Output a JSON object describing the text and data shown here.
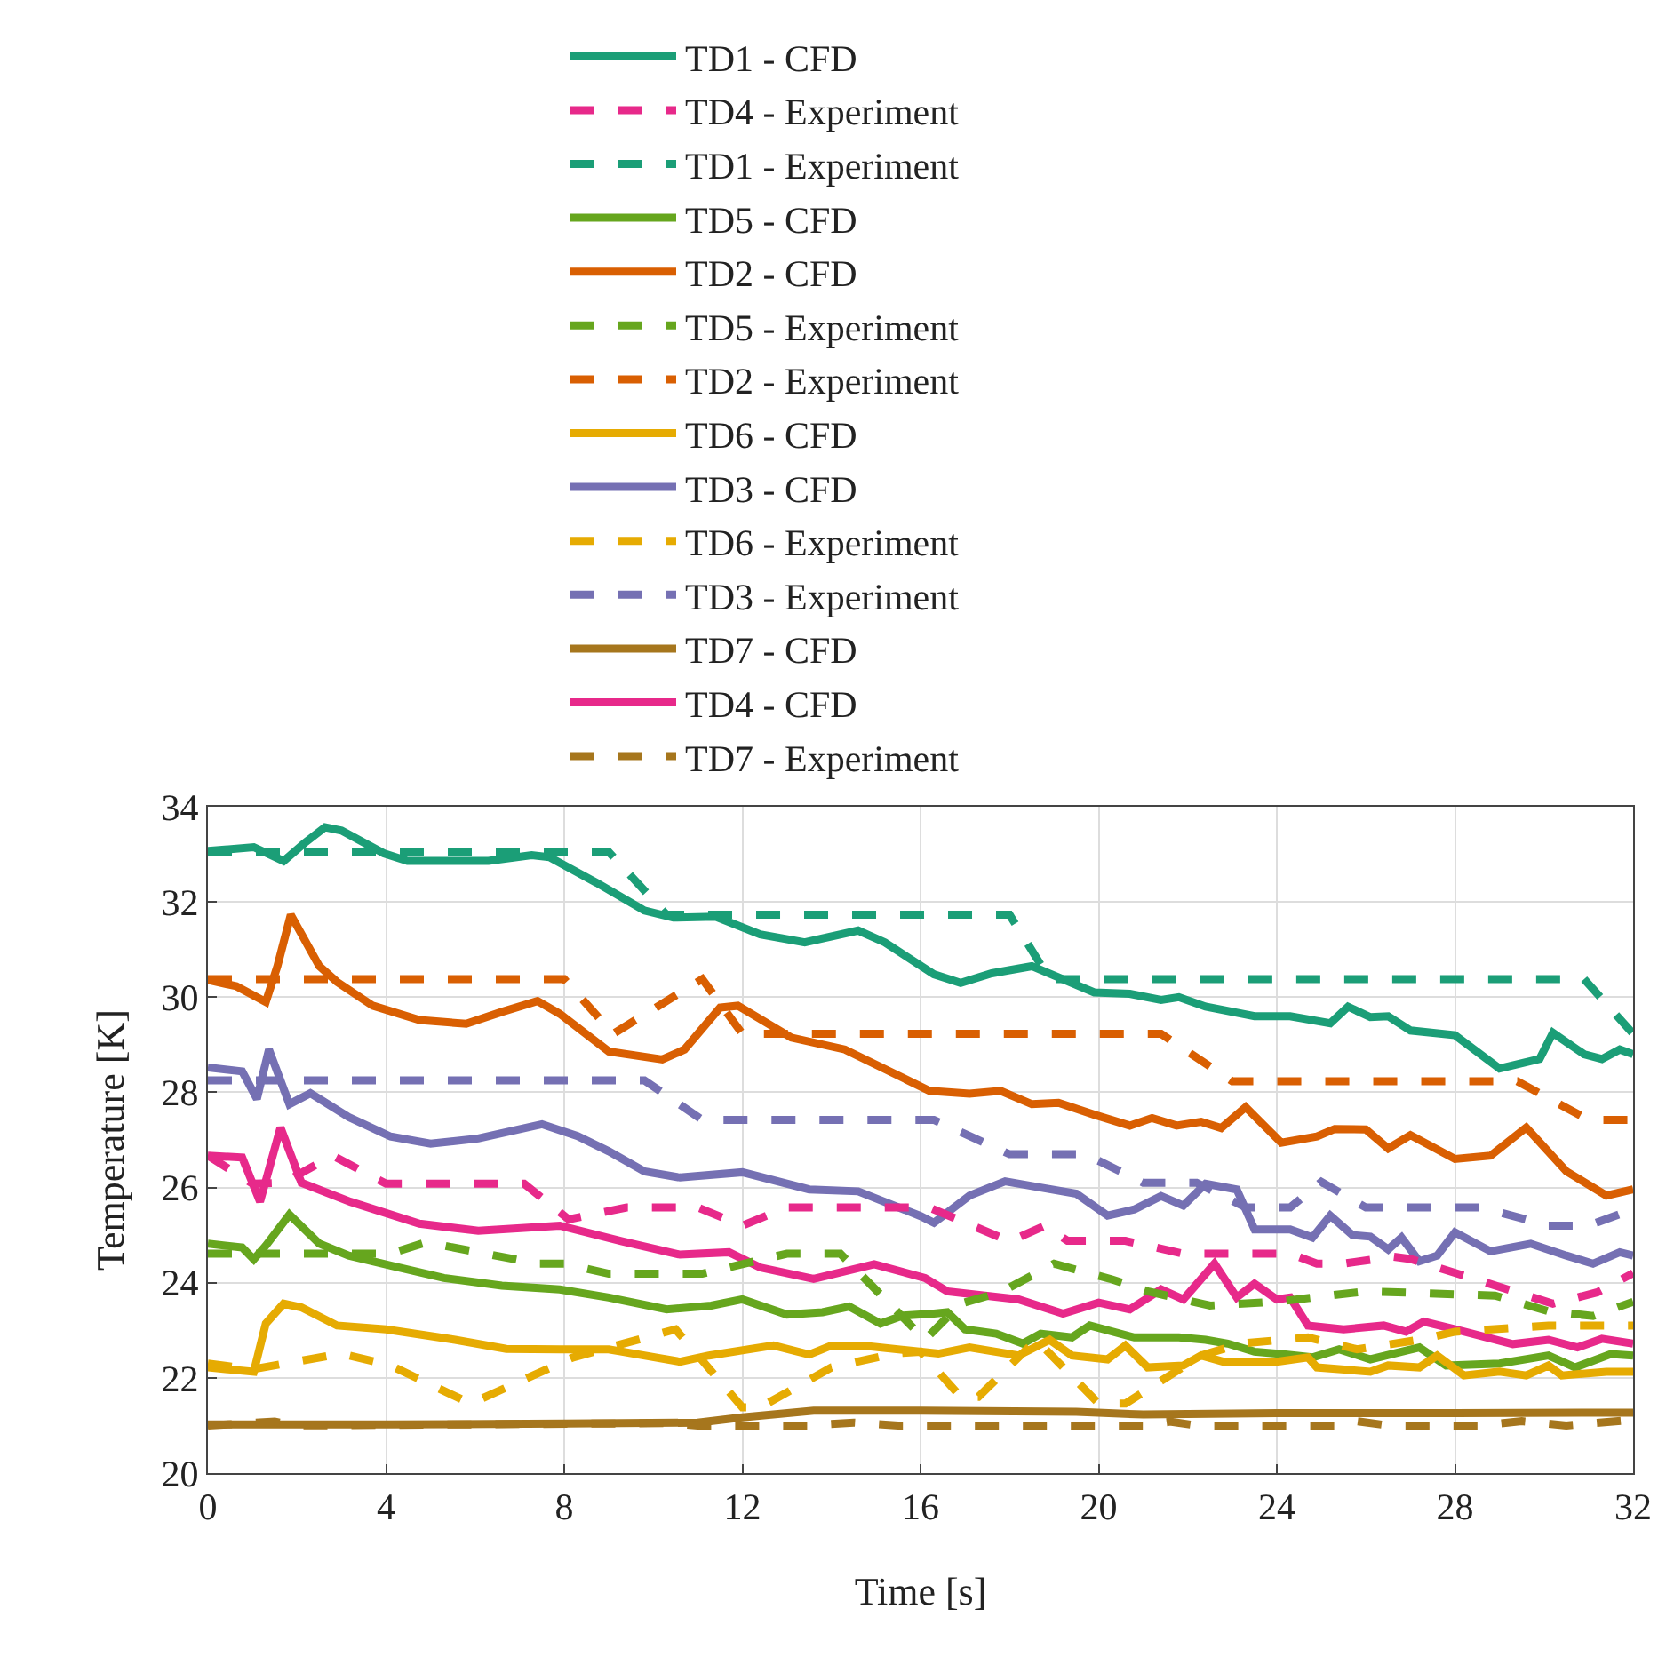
{
  "chart_data": {
    "type": "line",
    "xlabel": "Time [s]",
    "ylabel": "Temperature [K]",
    "xlim": [
      0,
      32
    ],
    "xticks": [
      0,
      4,
      8,
      12,
      16,
      20,
      24,
      28,
      32
    ],
    "ylim": [
      20,
      34
    ],
    "yticks": [
      20,
      22,
      24,
      26,
      28,
      30,
      32,
      34
    ],
    "grid": true,
    "legend": "top",
    "marker": "none",
    "series": [
      {
        "name": "TD1 - CFD",
        "color": "#1b9e77",
        "line_style": "solid",
        "x": [
          0,
          1.03,
          1.7,
          2.16,
          2.63,
          3.0,
          3.95,
          4.48,
          5.7,
          6.3,
          7.27,
          7.67,
          8.73,
          9.8,
          10.45,
          11.4,
          12.4,
          13.4,
          14.6,
          15.2,
          16.3,
          16.9,
          17.6,
          18.5,
          19.9,
          20.7,
          21.4,
          21.8,
          22.4,
          23.5,
          24.3,
          25.2,
          25.6,
          26.1,
          26.5,
          27.0,
          28.0,
          29.0,
          29.9,
          30.2,
          30.9,
          31.3,
          31.7,
          32
        ],
        "values": [
          33.07,
          33.15,
          32.86,
          33.23,
          33.57,
          33.5,
          33.02,
          32.86,
          32.86,
          32.86,
          32.98,
          32.94,
          32.4,
          31.82,
          31.67,
          31.69,
          31.32,
          31.15,
          31.4,
          31.15,
          30.48,
          30.3,
          30.5,
          30.65,
          30.1,
          30.07,
          29.94,
          30.0,
          29.8,
          29.6,
          29.6,
          29.45,
          29.8,
          29.58,
          29.6,
          29.3,
          29.2,
          28.5,
          28.7,
          29.25,
          28.8,
          28.7,
          28.9,
          28.8
        ]
      },
      {
        "name": "TD1 - Experiment",
        "color": "#1b9e77",
        "line_style": "dashed",
        "x": [
          0,
          9.0,
          10.3,
          18.0,
          18.9,
          30.9,
          32
        ],
        "values": [
          33.05,
          33.05,
          31.73,
          31.73,
          30.38,
          30.38,
          29.23
        ]
      },
      {
        "name": "TD2 - CFD",
        "color": "#d95f02",
        "line_style": "solid",
        "x": [
          0,
          0.64,
          1.3,
          1.56,
          1.86,
          2.5,
          2.9,
          3.7,
          4.75,
          5.8,
          6.6,
          7.4,
          7.9,
          9.0,
          10.2,
          10.7,
          11.5,
          11.9,
          13.1,
          14.3,
          16.2,
          17.1,
          17.8,
          18.5,
          19.1,
          19.9,
          20.7,
          21.2,
          21.75,
          22.3,
          22.75,
          23.3,
          24.1,
          24.9,
          25.3,
          26.0,
          26.5,
          27.0,
          28.0,
          28.8,
          29.6,
          30.5,
          31.4,
          32
        ],
        "values": [
          30.36,
          30.23,
          29.9,
          30.65,
          31.73,
          30.65,
          30.32,
          29.82,
          29.52,
          29.44,
          29.69,
          29.92,
          29.65,
          28.86,
          28.69,
          28.9,
          29.78,
          29.82,
          29.15,
          28.9,
          28.03,
          27.97,
          28.03,
          27.75,
          27.78,
          27.53,
          27.3,
          27.46,
          27.3,
          27.38,
          27.25,
          27.69,
          26.94,
          27.07,
          27.23,
          27.22,
          26.82,
          27.1,
          26.6,
          26.67,
          27.26,
          26.34,
          25.83,
          25.96
        ]
      },
      {
        "name": "TD2 - Experiment",
        "color": "#d95f02",
        "line_style": "dashed",
        "x": [
          0,
          8.0,
          9.1,
          11.1,
          12.0,
          21.4,
          23.0,
          29.4,
          31.0,
          32
        ],
        "values": [
          30.38,
          30.38,
          29.23,
          30.38,
          29.23,
          29.23,
          28.23,
          28.23,
          27.42,
          27.42
        ]
      },
      {
        "name": "TD3 - CFD",
        "color": "#7570b3",
        "line_style": "solid",
        "x": [
          0,
          0.77,
          1.1,
          1.37,
          1.83,
          2.3,
          3.16,
          4.1,
          5.0,
          6.07,
          7.5,
          8.3,
          9.0,
          9.8,
          10.6,
          12.0,
          13.5,
          14.6,
          16.0,
          16.3,
          17.1,
          17.9,
          18.7,
          19.5,
          20.2,
          20.8,
          21.4,
          21.9,
          22.4,
          23.1,
          23.5,
          24.3,
          24.8,
          25.2,
          25.7,
          26.1,
          26.5,
          26.8,
          27.2,
          27.6,
          28.0,
          28.8,
          29.7,
          30.5,
          31.1,
          31.7,
          32
        ],
        "values": [
          28.52,
          28.44,
          27.86,
          28.9,
          27.75,
          27.98,
          27.48,
          27.07,
          26.92,
          27.03,
          27.33,
          27.08,
          26.76,
          26.34,
          26.21,
          26.32,
          25.96,
          25.92,
          25.4,
          25.26,
          25.83,
          26.13,
          26.0,
          25.87,
          25.41,
          25.54,
          25.82,
          25.62,
          26.08,
          25.96,
          25.12,
          25.12,
          24.95,
          25.41,
          25.0,
          24.97,
          24.7,
          24.95,
          24.45,
          24.57,
          25.06,
          24.66,
          24.82,
          24.57,
          24.4,
          24.64,
          24.57
        ]
      },
      {
        "name": "TD3 - Experiment",
        "color": "#7570b3",
        "line_style": "dashed",
        "x": [
          0,
          9.8,
          11.1,
          16.3,
          18.0,
          19.7,
          21.0,
          22.2,
          23.3,
          24.3,
          25.0,
          26.0,
          28.6,
          30.1,
          31.0,
          32
        ],
        "values": [
          28.25,
          28.25,
          27.42,
          27.42,
          26.7,
          26.7,
          26.1,
          26.1,
          25.58,
          25.58,
          26.12,
          25.58,
          25.58,
          25.2,
          25.2,
          25.54
        ]
      },
      {
        "name": "TD4 - CFD",
        "color": "#e7298a",
        "line_style": "solid",
        "x": [
          0,
          0.77,
          1.17,
          1.63,
          2.1,
          3.2,
          4.75,
          6.07,
          7.9,
          9.3,
          10.6,
          11.7,
          12.4,
          13.6,
          14.96,
          16.1,
          16.6,
          18.2,
          19.2,
          20.0,
          20.7,
          21.4,
          21.9,
          22.6,
          23.1,
          23.5,
          24.0,
          24.3,
          24.7,
          25.5,
          26.4,
          26.9,
          27.3,
          28.0,
          29.3,
          30.1,
          30.75,
          31.3,
          32
        ],
        "values": [
          26.67,
          26.63,
          25.7,
          27.26,
          26.1,
          25.7,
          25.24,
          25.09,
          25.2,
          24.87,
          24.59,
          24.64,
          24.32,
          24.08,
          24.39,
          24.1,
          23.82,
          23.65,
          23.35,
          23.58,
          23.44,
          23.86,
          23.65,
          24.4,
          23.69,
          23.98,
          23.65,
          23.69,
          23.1,
          23.02,
          23.1,
          22.97,
          23.18,
          23.02,
          22.71,
          22.8,
          22.64,
          22.82,
          22.72
        ]
      },
      {
        "name": "TD4 - Experiment",
        "color": "#e7298a",
        "line_style": "dashed",
        "x": [
          0,
          1.0,
          1.7,
          2.8,
          4.0,
          7.1,
          8.1,
          9.4,
          11.0,
          12.0,
          13.0,
          16.2,
          18.0,
          18.8,
          19.3,
          20.6,
          21.9,
          24.3,
          24.9,
          25.5,
          26.6,
          27.0,
          30.2,
          31.2,
          32
        ],
        "values": [
          26.67,
          26.08,
          26.1,
          26.67,
          26.08,
          26.08,
          25.33,
          25.58,
          25.58,
          25.2,
          25.58,
          25.58,
          24.87,
          25.2,
          24.88,
          24.88,
          24.61,
          24.61,
          24.4,
          24.4,
          24.55,
          24.5,
          23.56,
          23.8,
          24.2
        ]
      },
      {
        "name": "TD5 - CFD",
        "color": "#66a61e",
        "line_style": "solid",
        "x": [
          0,
          0.77,
          1.03,
          1.3,
          1.83,
          2.5,
          3.16,
          4.1,
          5.3,
          6.6,
          7.9,
          9.0,
          10.3,
          11.3,
          12.0,
          13.0,
          13.8,
          14.4,
          15.1,
          15.6,
          16.3,
          16.6,
          17.0,
          17.7,
          18.3,
          18.7,
          19.4,
          19.8,
          20.8,
          21.8,
          22.4,
          22.9,
          23.5,
          24.1,
          24.8,
          25.4,
          26.1,
          27.2,
          27.8,
          29.0,
          30.1,
          30.7,
          31.5,
          32
        ],
        "values": [
          24.82,
          24.74,
          24.49,
          24.78,
          25.43,
          24.82,
          24.57,
          24.36,
          24.1,
          23.94,
          23.86,
          23.69,
          23.44,
          23.52,
          23.65,
          23.33,
          23.38,
          23.5,
          23.14,
          23.31,
          23.35,
          23.38,
          23.02,
          22.93,
          22.72,
          22.93,
          22.85,
          23.1,
          22.85,
          22.85,
          22.8,
          22.72,
          22.55,
          22.5,
          22.43,
          22.6,
          22.39,
          22.64,
          22.26,
          22.3,
          22.47,
          22.22,
          22.5,
          22.47
        ]
      },
      {
        "name": "TD5 - Experiment",
        "color": "#66a61e",
        "line_style": "dashed",
        "x": [
          0,
          4.1,
          4.9,
          7.4,
          8.0,
          9.0,
          11.1,
          13.0,
          14.2,
          16.1,
          16.9,
          17.8,
          19.0,
          20.3,
          21.1,
          22.5,
          24.0,
          26.0,
          28.9,
          30.1,
          31.1,
          32
        ],
        "values": [
          24.61,
          24.61,
          24.85,
          24.4,
          24.4,
          24.19,
          24.19,
          24.61,
          24.61,
          22.8,
          23.56,
          23.8,
          24.4,
          24.07,
          23.82,
          23.52,
          23.6,
          23.82,
          23.73,
          23.4,
          23.3,
          23.6
        ]
      },
      {
        "name": "TD6 - CFD",
        "color": "#e6ab02",
        "line_style": "solid",
        "x": [
          0,
          1.03,
          1.3,
          1.7,
          2.1,
          2.9,
          4.0,
          5.55,
          6.7,
          7.9,
          9.0,
          10.6,
          11.25,
          12.7,
          13.5,
          14.0,
          14.7,
          16.4,
          17.1,
          18.2,
          18.9,
          19.4,
          20.2,
          20.6,
          21.1,
          21.9,
          22.3,
          22.8,
          24.0,
          24.7,
          24.9,
          26.1,
          26.5,
          27.2,
          27.6,
          28.2,
          29.0,
          29.6,
          30.1,
          30.4,
          31.4,
          32
        ],
        "values": [
          22.22,
          22.13,
          23.14,
          23.56,
          23.48,
          23.1,
          23.02,
          22.8,
          22.61,
          22.6,
          22.6,
          22.34,
          22.47,
          22.68,
          22.49,
          22.68,
          22.68,
          22.51,
          22.64,
          22.47,
          22.8,
          22.47,
          22.39,
          22.68,
          22.22,
          22.26,
          22.47,
          22.34,
          22.34,
          22.43,
          22.22,
          22.13,
          22.26,
          22.22,
          22.47,
          22.05,
          22.13,
          22.05,
          22.26,
          22.05,
          22.13,
          22.13
        ]
      },
      {
        "name": "TD6 - Experiment",
        "color": "#e6ab02",
        "line_style": "dashed",
        "x": [
          0,
          1.0,
          3.0,
          4.1,
          5.9,
          8.2,
          10.5,
          12.0,
          12.4,
          14.0,
          15.4,
          16.0,
          16.9,
          17.3,
          18.6,
          20.0,
          20.6,
          22.3,
          23.2,
          24.7,
          25.8,
          27.2,
          28.0,
          30.1,
          32
        ],
        "values": [
          22.3,
          22.18,
          22.51,
          22.26,
          21.46,
          22.43,
          23.02,
          21.38,
          21.38,
          22.22,
          22.51,
          22.55,
          21.6,
          21.6,
          22.8,
          21.46,
          21.46,
          22.47,
          22.72,
          22.85,
          22.6,
          22.8,
          22.97,
          23.1,
          23.1
        ]
      },
      {
        "name": "TD7 - CFD",
        "color": "#a6761d",
        "line_style": "solid",
        "x": [
          0,
          4,
          8,
          11,
          12,
          13.6,
          16,
          19.5,
          21,
          24,
          28,
          32
        ],
        "values": [
          21.02,
          21.02,
          21.04,
          21.06,
          21.17,
          21.31,
          21.31,
          21.29,
          21.23,
          21.26,
          21.26,
          21.27
        ]
      },
      {
        "name": "TD7 - Experiment",
        "color": "#a6761d",
        "line_style": "dashed",
        "x": [
          0,
          1.5,
          2,
          10.3,
          11,
          13.5,
          14.5,
          15.5,
          21,
          21.6,
          22.2,
          25.3,
          25.8,
          26.5,
          28.6,
          29.5,
          30.5,
          32
        ],
        "values": [
          21.0,
          21.08,
          21.0,
          21.05,
          21.0,
          21.0,
          21.06,
          21.0,
          21.0,
          21.08,
          21.0,
          21.0,
          21.09,
          21.0,
          21.0,
          21.09,
          21.0,
          21.12
        ]
      }
    ]
  }
}
